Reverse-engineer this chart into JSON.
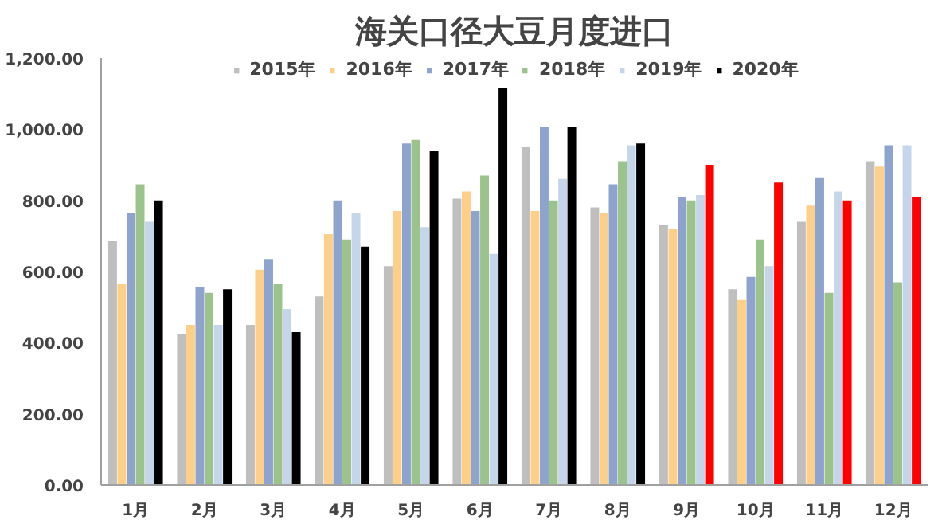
{
  "chart_data": {
    "type": "bar",
    "title": "海关口径大豆月度进口",
    "categories": [
      "1月",
      "2月",
      "3月",
      "4月",
      "5月",
      "6月",
      "7月",
      "8月",
      "9月",
      "10月",
      "11月",
      "12月"
    ],
    "series": [
      {
        "name": "2015年",
        "color": "#bfbfbf",
        "values": [
          685,
          425,
          450,
          530,
          615,
          805,
          950,
          780,
          730,
          550,
          740,
          910
        ]
      },
      {
        "name": "2016年",
        "color": "#fdd08a",
        "values": [
          565,
          450,
          605,
          705,
          770,
          825,
          770,
          765,
          720,
          520,
          785,
          895
        ]
      },
      {
        "name": "2017年",
        "color": "#8ea4cf",
        "values": [
          765,
          555,
          635,
          800,
          960,
          770,
          1005,
          845,
          810,
          585,
          865,
          955
        ]
      },
      {
        "name": "2018年",
        "color": "#9dc38d",
        "values": [
          845,
          540,
          565,
          690,
          970,
          870,
          800,
          910,
          800,
          690,
          540,
          570
        ]
      },
      {
        "name": "2019年",
        "color": "#c5d5ea",
        "values": [
          740,
          450,
          495,
          765,
          725,
          650,
          860,
          955,
          815,
          615,
          825,
          955
        ]
      },
      {
        "name": "2020年",
        "color": "#000000",
        "colors": [
          "#000000",
          "#000000",
          "#000000",
          "#000000",
          "#000000",
          "#000000",
          "#000000",
          "#000000",
          "#ff0000",
          "#ff0000",
          "#ff0000",
          "#ff0000"
        ],
        "values": [
          800,
          550,
          430,
          670,
          940,
          1115,
          1005,
          960,
          900,
          850,
          800,
          810
        ]
      }
    ],
    "ylim": [
      0,
      1200
    ],
    "yticks": [
      {
        "value": 0,
        "label": "0.00"
      },
      {
        "value": 200,
        "label": "200.00"
      },
      {
        "value": 400,
        "label": "400.00"
      },
      {
        "value": 600,
        "label": "600.00"
      },
      {
        "value": 800,
        "label": "800.00"
      },
      {
        "value": 1000,
        "label": "1,000.00"
      },
      {
        "value": 1200,
        "label": "1,200.00"
      }
    ],
    "grid": false,
    "legend": "top"
  }
}
